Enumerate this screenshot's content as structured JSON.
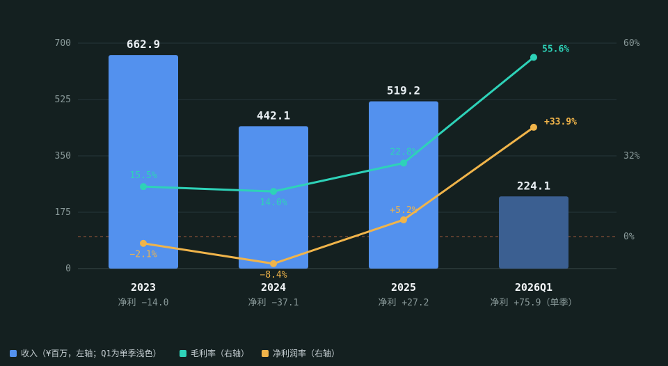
{
  "chart_data": {
    "type": "bar+line",
    "categories": [
      "2023",
      "2024",
      "2025",
      "2026Q1"
    ],
    "sublabels": [
      "净利 −14.0",
      "净利 −37.1",
      "净利 +27.2",
      "净利 +75.9（单季）"
    ],
    "y_left": {
      "ticks": [
        "0",
        "175",
        "350",
        "525",
        "700"
      ],
      "range": [
        0,
        700
      ]
    },
    "y_right": {
      "ticks": [
        "0%",
        "32%",
        "60%"
      ]
    },
    "series": [
      {
        "name": "收入（¥百万，左轴；Q1为单季浅色）",
        "kind": "bar",
        "axis": "left",
        "values": [
          662.9,
          442.1,
          519.2,
          224.1
        ],
        "labels": [
          "662.9",
          "442.1",
          "519.2",
          "224.1"
        ],
        "color": "#5391ee",
        "light_color": "#3b5f91"
      },
      {
        "name": "毛利率（右轴）",
        "kind": "line",
        "axis": "right",
        "values": [
          15.5,
          14.0,
          22.8,
          55.6
        ],
        "labels": [
          "15.5%",
          "14.0%",
          "22.8%",
          "55.6%"
        ],
        "color": "#2ed2b8"
      },
      {
        "name": "净利润率（右轴）",
        "kind": "line",
        "axis": "right",
        "values": [
          -2.1,
          -8.4,
          5.2,
          33.9
        ],
        "labels": [
          "−2.1%",
          "−8.4%",
          "+5.2%",
          "+33.9%"
        ],
        "color": "#f0b44a"
      }
    ],
    "grid": true,
    "zero_line_right": {
      "style": "dashed",
      "color": "#a25a3a"
    },
    "legend_position": "bottom-left"
  }
}
